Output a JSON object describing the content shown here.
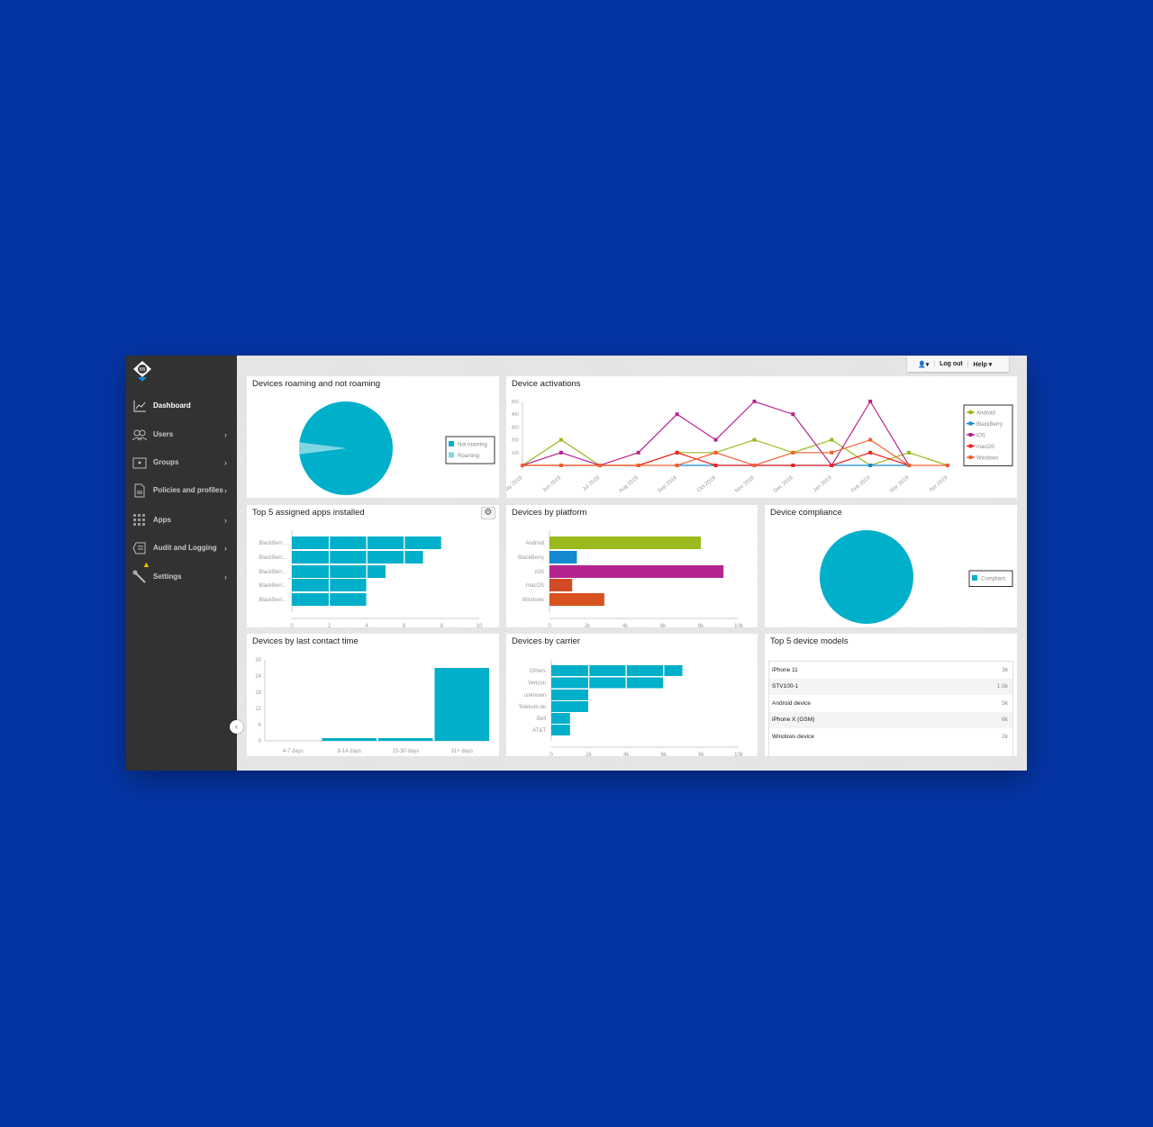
{
  "topbar": {
    "user_icon": "user-icon",
    "logout": "Log out",
    "help": "Help"
  },
  "sidebar": {
    "items": [
      {
        "label": "Dashboard",
        "icon": "chart-line-icon",
        "active": true
      },
      {
        "label": "Users",
        "icon": "users-icon"
      },
      {
        "label": "Groups",
        "icon": "folder-user-icon"
      },
      {
        "label": "Policies and profiles",
        "icon": "document-icon"
      },
      {
        "label": "Apps",
        "icon": "grid-icon"
      },
      {
        "label": "Audit and Logging",
        "icon": "log-icon"
      },
      {
        "label": "Settings",
        "icon": "wrench-icon",
        "warning": true
      }
    ]
  },
  "colors": {
    "teal": "#00afc9",
    "teal_light": "#7fd6e3",
    "android": "#9ab91c",
    "blackberry": "#1489d2",
    "ios": "#b5248e",
    "macos": "#d24a26",
    "windows": "#d8521f",
    "macos_line": "#ee2222",
    "windows_line": "#f06030"
  },
  "chart_data": [
    {
      "id": "roaming",
      "type": "pie",
      "title": "Devices roaming and not roaming",
      "legend_position": "right",
      "slices": [
        {
          "name": "Not roaming",
          "value": 96
        },
        {
          "name": "Roaming",
          "value": 4
        }
      ]
    },
    {
      "id": "activations",
      "type": "line",
      "title": "Device activations",
      "legend_position": "right",
      "categories": [
        "May 2018",
        "Jun 2018",
        "Jul 2018",
        "Aug 2018",
        "Sep 2018",
        "Oct 2018",
        "Nov 2018",
        "Dec 2018",
        "Jan 2019",
        "Feb 2019",
        "Mar 2019",
        "Apr 2019"
      ],
      "yticks": [
        100,
        200,
        300,
        400,
        500
      ],
      "ylim": [
        0,
        500
      ],
      "series": [
        {
          "name": "Android",
          "values": [
            0,
            200,
            0,
            0,
            100,
            100,
            200,
            100,
            200,
            0,
            100,
            0
          ]
        },
        {
          "name": "BlackBerry",
          "values": [
            null,
            null,
            null,
            null,
            0,
            0,
            0,
            0,
            0,
            0,
            0,
            null
          ]
        },
        {
          "name": "iOS",
          "values": [
            0,
            100,
            0,
            100,
            400,
            200,
            500,
            400,
            0,
            500,
            0,
            null
          ]
        },
        {
          "name": "macOS",
          "values": [
            0,
            0,
            0,
            0,
            100,
            0,
            0,
            0,
            0,
            100,
            0,
            null
          ]
        },
        {
          "name": "Windows",
          "values": [
            0,
            0,
            0,
            0,
            0,
            100,
            0,
            100,
            100,
            200,
            0,
            0
          ]
        }
      ]
    },
    {
      "id": "apps",
      "type": "bar",
      "orientation": "horizontal",
      "title": "Top 5 assigned apps installed",
      "categories": [
        "BlackBerr...",
        "BlackBerr...",
        "BlackBerr...",
        "BlackBerr...",
        "BlackBerr..."
      ],
      "values": [
        8,
        7,
        5,
        4,
        4
      ],
      "xlim": [
        0,
        10
      ],
      "xticks": [
        "0",
        "2",
        "4",
        "6",
        "8",
        "10"
      ]
    },
    {
      "id": "platform",
      "type": "bar",
      "orientation": "horizontal",
      "title": "Devices by platform",
      "categories": [
        "Android",
        "BlackBerry",
        "iOS",
        "macOS",
        "Windows"
      ],
      "values": [
        8000,
        1450,
        9200,
        1200,
        2900
      ],
      "xlim": [
        0,
        10000
      ],
      "xticks": [
        "0",
        "2k",
        "4k",
        "6k",
        "8k",
        "10k"
      ]
    },
    {
      "id": "compliance",
      "type": "pie",
      "title": "Device compliance",
      "legend_position": "right",
      "slices": [
        {
          "name": "Compliant",
          "value": 100
        }
      ]
    },
    {
      "id": "contact",
      "type": "bar",
      "orientation": "vertical",
      "title": "Devices by last contact time",
      "categories": [
        "4-7 days",
        "8-14 days",
        "15-30 days",
        "31+ days"
      ],
      "values": [
        0,
        1,
        1,
        27
      ],
      "ylim": [
        0,
        30
      ],
      "yticks": [
        "0",
        "6",
        "12",
        "18",
        "24",
        "30"
      ]
    },
    {
      "id": "carrier",
      "type": "bar",
      "orientation": "horizontal",
      "title": "Devices by carrier",
      "categories": [
        "Others",
        "Verizon",
        "unknown",
        "Telekom.de",
        "Bell",
        "AT&T"
      ],
      "values": [
        7000,
        6000,
        2000,
        2000,
        1000,
        1000
      ],
      "xlim": [
        0,
        10000
      ],
      "xticks": [
        "0",
        "2k",
        "4k",
        "6k",
        "8k",
        "10k"
      ]
    }
  ],
  "models": {
    "title": "Top 5 device models",
    "rows": [
      {
        "name": "iPhone 11",
        "value": "3k"
      },
      {
        "name": "STV100-1",
        "value": "1.5k"
      },
      {
        "name": "Android device",
        "value": "5k"
      },
      {
        "name": "iPhone X (GSM)",
        "value": "6k"
      },
      {
        "name": "Windows device",
        "value": "2k"
      }
    ]
  }
}
